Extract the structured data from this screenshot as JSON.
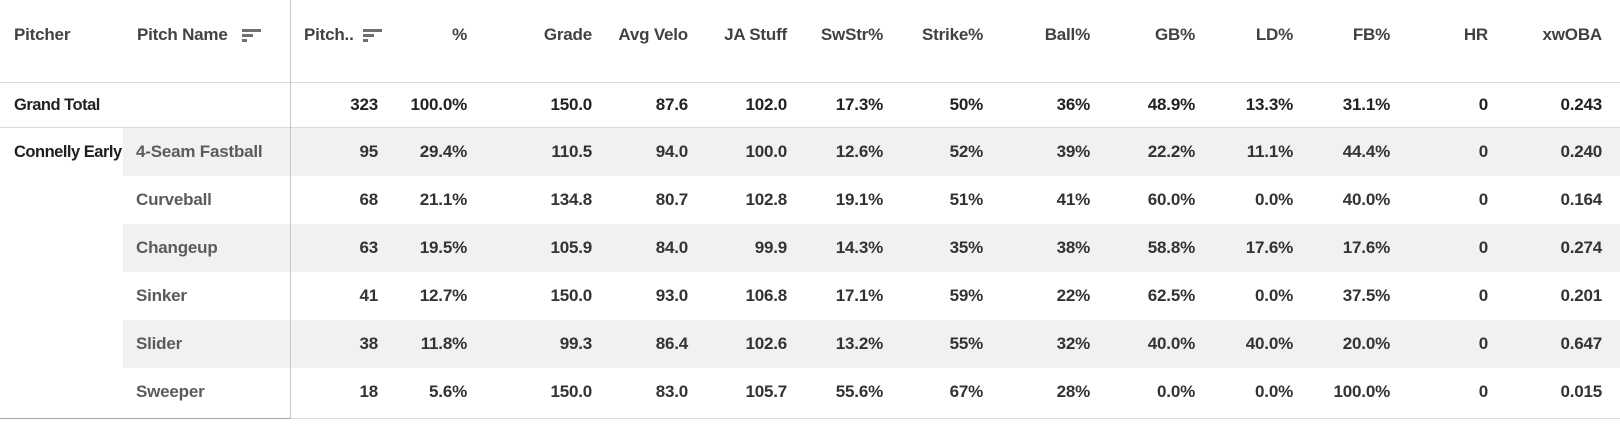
{
  "chart_data": {
    "type": "table",
    "title": "Pitching arsenal stats table",
    "legend": "none",
    "grid": "row-stripes",
    "columns": [
      {
        "id": "pitcher",
        "label": "Pitcher",
        "header_align": "left",
        "value_align": "left",
        "sort_icon": false
      },
      {
        "id": "pitch_name",
        "label": "Pitch Name",
        "header_align": "left",
        "value_align": "left",
        "sort_icon": true
      },
      {
        "id": "pitches",
        "label": "Pitch..",
        "header_align": "left",
        "value_align": "right",
        "sort_icon": true
      },
      {
        "id": "pct",
        "label": "%",
        "header_align": "right",
        "value_align": "right",
        "sort_icon": false
      },
      {
        "id": "grade",
        "label": "Grade",
        "header_align": "right",
        "value_align": "right",
        "sort_icon": false
      },
      {
        "id": "avg_velo",
        "label": "Avg Velo",
        "header_align": "right",
        "value_align": "right",
        "sort_icon": false
      },
      {
        "id": "ja_stuff",
        "label": "JA Stuff",
        "header_align": "right",
        "value_align": "right",
        "sort_icon": false
      },
      {
        "id": "swstr_pct",
        "label": "SwStr%",
        "header_align": "right",
        "value_align": "right",
        "sort_icon": false
      },
      {
        "id": "strike_pct",
        "label": "Strike%",
        "header_align": "right",
        "value_align": "right",
        "sort_icon": false
      },
      {
        "id": "ball_pct",
        "label": "Ball%",
        "header_align": "right",
        "value_align": "right",
        "sort_icon": false
      },
      {
        "id": "gb_pct",
        "label": "GB%",
        "header_align": "right",
        "value_align": "right",
        "sort_icon": false
      },
      {
        "id": "ld_pct",
        "label": "LD%",
        "header_align": "right",
        "value_align": "right",
        "sort_icon": false
      },
      {
        "id": "fb_pct",
        "label": "FB%",
        "header_align": "right",
        "value_align": "right",
        "sort_icon": false
      },
      {
        "id": "hr",
        "label": "HR",
        "header_align": "right",
        "value_align": "right",
        "sort_icon": false
      },
      {
        "id": "xwoba",
        "label": "xwOBA",
        "header_align": "right",
        "value_align": "right",
        "sort_icon": false
      }
    ],
    "grand_total": {
      "pitcher": "Grand Total",
      "pitch_name": "",
      "values": [
        "323",
        "100.0%",
        "150.0",
        "87.6",
        "102.0",
        "17.3%",
        "50%",
        "36%",
        "48.9%",
        "13.3%",
        "31.1%",
        "0",
        "0.243"
      ]
    },
    "rows": [
      {
        "pitcher": "Connelly Early",
        "pitch_name": "4-Seam Fastball",
        "values": [
          "95",
          "29.4%",
          "110.5",
          "94.0",
          "100.0",
          "12.6%",
          "52%",
          "39%",
          "22.2%",
          "11.1%",
          "44.4%",
          "0",
          "0.240"
        ]
      },
      {
        "pitcher": "",
        "pitch_name": "Curveball",
        "values": [
          "68",
          "21.1%",
          "134.8",
          "80.7",
          "102.8",
          "19.1%",
          "51%",
          "41%",
          "60.0%",
          "0.0%",
          "40.0%",
          "0",
          "0.164"
        ]
      },
      {
        "pitcher": "",
        "pitch_name": "Changeup",
        "values": [
          "63",
          "19.5%",
          "105.9",
          "84.0",
          "99.9",
          "14.3%",
          "35%",
          "38%",
          "58.8%",
          "17.6%",
          "17.6%",
          "0",
          "0.274"
        ]
      },
      {
        "pitcher": "",
        "pitch_name": "Sinker",
        "values": [
          "41",
          "12.7%",
          "150.0",
          "93.0",
          "106.8",
          "17.1%",
          "59%",
          "22%",
          "62.5%",
          "0.0%",
          "37.5%",
          "0",
          "0.201"
        ]
      },
      {
        "pitcher": "",
        "pitch_name": "Slider",
        "values": [
          "38",
          "11.8%",
          "99.3",
          "86.4",
          "102.6",
          "13.2%",
          "55%",
          "32%",
          "40.0%",
          "40.0%",
          "20.0%",
          "0",
          "0.647"
        ]
      },
      {
        "pitcher": "",
        "pitch_name": "Sweeper",
        "values": [
          "18",
          "5.6%",
          "150.0",
          "83.0",
          "105.7",
          "55.6%",
          "67%",
          "28%",
          "0.0%",
          "0.0%",
          "100.0%",
          "0",
          "0.015"
        ]
      }
    ],
    "icons": {
      "sort_icon_name": "sort-descending-icon",
      "sort_icon_color": "#6f6f6f"
    },
    "colors": {
      "stripe": "#f1f1f1",
      "header_text": "#424242",
      "pitcher_text": "#1f1f1f",
      "pitch_name_text": "#5b5b5b",
      "value_text": "#333333",
      "column_divider": "#c6c6c6",
      "rule_light": "#d9d9d9",
      "rule_dark": "#a3a3a3",
      "background": "#ffffff"
    }
  }
}
